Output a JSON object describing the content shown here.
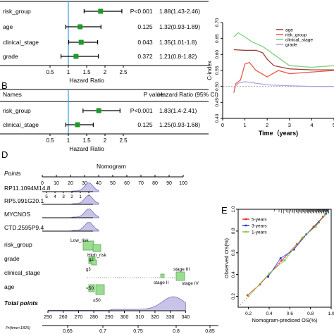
{
  "chart_data": [
    {
      "panel": "A",
      "type": "forest",
      "row_labels": [
        "risk_group",
        "age",
        "clinical_stage",
        "grade"
      ],
      "p_values": [
        "P<0.001",
        "0.125",
        "0.043",
        "0.372"
      ],
      "hr_text": [
        "1.88(1.43-2.46)",
        "1.32(0.93-1.89)",
        "1.35(1.01-1.8)",
        "1.21(0.8-1.82)"
      ],
      "hr": [
        1.88,
        1.32,
        1.35,
        1.21
      ],
      "lower": [
        1.43,
        0.93,
        1.01,
        0.8
      ],
      "upper": [
        2.46,
        1.89,
        1.8,
        1.82
      ],
      "ticks": [
        0.5,
        1,
        1.5,
        2,
        2.5
      ],
      "tick_labels": [
        "0.5",
        "1",
        "1.5",
        "2",
        "2.5"
      ],
      "xlabel": "Hazard Ratio",
      "reference": 1
    },
    {
      "panel": "B",
      "type": "forest",
      "panel_label": "B",
      "headers": [
        "Names",
        "P value",
        "Hazard Ratio (95% CI)"
      ],
      "row_labels": [
        "risk_group",
        "clinical_stage"
      ],
      "p_values": [
        "P<0.001",
        "0.125"
      ],
      "hr_text": [
        "1.83(1.4-2.41)",
        "1.25(0.93-1.68)"
      ],
      "hr": [
        1.83,
        1.25
      ],
      "lower": [
        1.4,
        0.93
      ],
      "upper": [
        2.41,
        1.68
      ],
      "ticks": [
        0.5,
        1,
        1.5,
        2,
        2.5
      ],
      "tick_labels": [
        "0.5",
        "1",
        "1.5",
        "2",
        "2.5"
      ],
      "xlabel": "Hazard Ratio",
      "reference": 1
    },
    {
      "panel": "C",
      "type": "line",
      "xlabel": "Time（years)",
      "ylabel": "C-index",
      "xlim": [
        0,
        5
      ],
      "ylim": [
        0.4,
        0.7
      ],
      "x_ticks": [
        "0",
        "1",
        "2",
        "3",
        "4",
        "5"
      ],
      "y_ticks": [
        "0.40",
        "0.45",
        "0.50",
        "0.55",
        "0.60",
        "0.65",
        "0.70"
      ],
      "legend_position": "top-right",
      "reference_y": 0.5,
      "series": [
        {
          "name": "age",
          "color": "#9b3a3a",
          "points": [
            [
              0.5,
              0.615
            ],
            [
              1,
              0.613
            ],
            [
              1.5,
              0.613
            ],
            [
              1.8,
              0.605
            ],
            [
              2,
              0.585
            ],
            [
              2.3,
              0.565
            ],
            [
              3,
              0.555
            ],
            [
              4,
              0.552
            ],
            [
              5,
              0.552
            ]
          ]
        },
        {
          "name": "risk_group",
          "color": "#e85a4a",
          "points": [
            [
              0.5,
              0.48
            ],
            [
              0.6,
              0.51
            ],
            [
              0.8,
              0.52
            ],
            [
              1,
              0.57
            ],
            [
              1.2,
              0.575
            ],
            [
              1.5,
              0.55
            ],
            [
              2,
              0.53
            ],
            [
              2.5,
              0.55
            ],
            [
              3,
              0.54
            ],
            [
              4,
              0.545
            ],
            [
              5,
              0.55
            ]
          ]
        },
        {
          "name": "clinical_stage",
          "color": "#7fd17f",
          "points": [
            [
              0.5,
              0.655
            ],
            [
              0.7,
              0.668
            ],
            [
              1,
              0.655
            ],
            [
              1.3,
              0.64
            ],
            [
              1.8,
              0.625
            ],
            [
              2.3,
              0.6
            ],
            [
              3,
              0.565
            ],
            [
              4,
              0.56
            ],
            [
              5,
              0.565
            ]
          ]
        },
        {
          "name": "grade",
          "color": "#b59fe0",
          "points": [
            [
              0.5,
              0.495
            ],
            [
              0.7,
              0.51
            ],
            [
              1,
              0.515
            ],
            [
              1.5,
              0.51
            ],
            [
              2,
              0.505
            ],
            [
              3,
              0.502
            ],
            [
              4,
              0.5
            ],
            [
              5,
              0.5
            ]
          ]
        }
      ]
    },
    {
      "panel": "D",
      "type": "nomogram",
      "panel_label": "D",
      "title": "Nomogram",
      "points_label": "Points",
      "points_ticks": [
        "0",
        "10",
        "20",
        "30",
        "40",
        "50",
        "60",
        "70",
        "80",
        "90",
        "100"
      ],
      "variables": [
        "RP11.1094M14.8",
        "RP5.991G20.1",
        "MYCNOS",
        "CTD.2595P9.4",
        "risk_group",
        "grade",
        "clinical_stage",
        "age"
      ],
      "small_ticks": [
        "5",
        "4",
        "3",
        "2",
        "1",
        "0"
      ],
      "risk_labels": [
        "Low_risk",
        "High_risk"
      ],
      "grade_labels": [
        "g2",
        "g3"
      ],
      "stage_labels": [
        "stage II",
        "stage III",
        "stage IV"
      ],
      "age_labels": [
        "<50",
        "≥50"
      ],
      "total_label": "Total points",
      "total_ticks": [
        "250",
        "260",
        "270",
        "280",
        "290",
        "300",
        "310",
        "320",
        "330",
        "340"
      ],
      "prob_label": "Pr(time<1825)",
      "prob_ticks": [
        "0.65",
        "0.7",
        "0.75",
        "0.8",
        "0.85"
      ]
    },
    {
      "panel": "E",
      "type": "scatter",
      "panel_label": "E",
      "xlabel": "Nomogram-prediced OS(%)",
      "ylabel": "Observed OS(%)",
      "xlim": [
        0.1,
        1.0
      ],
      "ylim": [
        0.1,
        1.0
      ],
      "x_ticks": [
        "0.2",
        "0.4",
        "0.6",
        "0.8",
        "1.0"
      ],
      "y_ticks": [
        "0.2",
        "0.4",
        "0.6",
        "0.8",
        "1.0"
      ],
      "legend_position": "top-left",
      "series": [
        {
          "name": "5-years",
          "color": "#e03030",
          "points": [
            [
              0.19,
              0.21
            ],
            [
              0.31,
              0.31
            ],
            [
              0.52,
              0.53
            ],
            [
              0.67,
              0.68
            ],
            [
              0.83,
              0.84
            ],
            [
              0.92,
              0.93
            ]
          ]
        },
        {
          "name": "3-years",
          "color": "#2a3dc8",
          "points": [
            [
              0.39,
              0.38
            ],
            [
              0.51,
              0.55
            ],
            [
              0.64,
              0.63
            ],
            [
              0.76,
              0.77
            ],
            [
              0.88,
              0.88
            ],
            [
              0.95,
              0.96
            ]
          ]
        },
        {
          "name": "1-years",
          "color": "#8cc63f",
          "points": [
            [
              0.2,
              0.2
            ],
            [
              0.4,
              0.41
            ],
            [
              0.55,
              0.53
            ],
            [
              0.72,
              0.74
            ],
            [
              0.85,
              0.84
            ],
            [
              0.94,
              0.95
            ]
          ]
        }
      ]
    }
  ]
}
